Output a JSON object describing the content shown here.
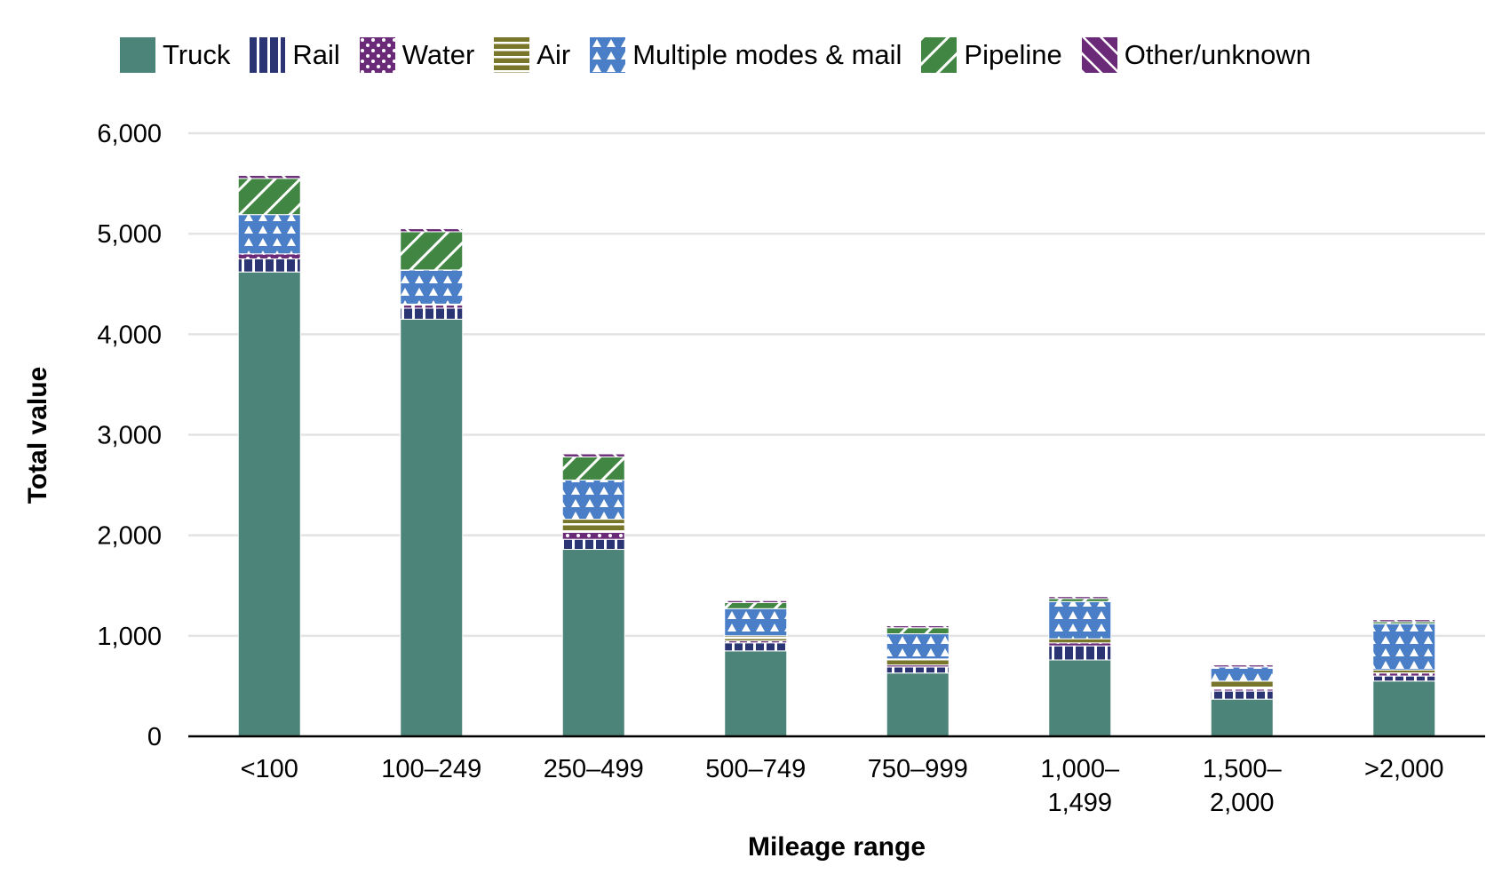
{
  "chart_data": {
    "type": "bar",
    "stacked": true,
    "title": "",
    "xlabel": "Mileage range",
    "ylabel": "Total value",
    "ylim": [
      0,
      6000
    ],
    "yticks": [
      0,
      1000,
      2000,
      3000,
      4000,
      5000,
      6000
    ],
    "ytick_labels": [
      "0",
      "1,000",
      "2,000",
      "3,000",
      "4,000",
      "5,000",
      "6,000"
    ],
    "grid": true,
    "legend_position": "top",
    "categories": [
      "<100",
      "100–249",
      "250–499",
      "500–749",
      "750–999",
      "1,000–1,499",
      "1,500–2,000",
      ">2,000"
    ],
    "category_lines": [
      [
        "<100"
      ],
      [
        "100–249"
      ],
      [
        "250–499"
      ],
      [
        "500–749"
      ],
      [
        "750–999"
      ],
      [
        "1,000–",
        "1,499"
      ],
      [
        "1,500–",
        "2,000"
      ],
      [
        ">2,000"
      ]
    ],
    "series": [
      {
        "name": "Truck",
        "color": "#4d8479",
        "pattern": "solid",
        "values": [
          4620,
          4150,
          1860,
          850,
          630,
          760,
          370,
          550
        ]
      },
      {
        "name": "Rail",
        "color": "#2c3574",
        "pattern": "vertical-stripes",
        "values": [
          130,
          110,
          100,
          80,
          60,
          140,
          80,
          50
        ]
      },
      {
        "name": "Water",
        "color": "#6b2a78",
        "pattern": "dots",
        "values": [
          50,
          30,
          70,
          20,
          20,
          30,
          20,
          30
        ]
      },
      {
        "name": "Air",
        "color": "#77762b",
        "pattern": "horizontal-stripes",
        "values": [
          0,
          10,
          130,
          50,
          60,
          40,
          80,
          30
        ]
      },
      {
        "name": "Multiple modes & mail",
        "color": "#4a7fc8",
        "pattern": "triangles",
        "values": [
          390,
          340,
          390,
          270,
          250,
          370,
          140,
          460
        ]
      },
      {
        "name": "Pipeline",
        "color": "#418642",
        "pattern": "diagonal-down",
        "values": [
          360,
          380,
          230,
          60,
          60,
          30,
          0,
          20
        ]
      },
      {
        "name": "Other/unknown",
        "color": "#6b2a78",
        "pattern": "diagonal-up",
        "values": [
          30,
          30,
          30,
          20,
          20,
          20,
          20,
          20
        ]
      }
    ]
  }
}
